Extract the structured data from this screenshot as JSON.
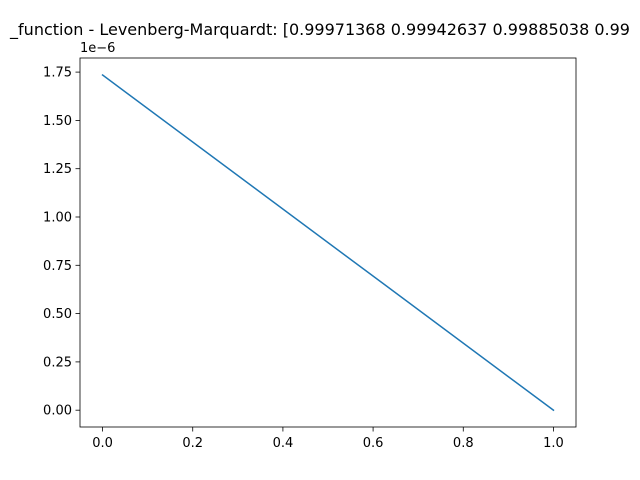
{
  "chart_data": {
    "type": "line",
    "title": "_function - Levenberg-Marquardt: [0.99971368 0.99942637 0.99885038 0.99",
    "xlabel": "",
    "ylabel": "",
    "y_offset_label": "1e−6",
    "xlim": [
      -0.05,
      1.05
    ],
    "ylim": [
      -0.087,
      1.823
    ],
    "grid": false,
    "x_ticks": [
      0.0,
      0.2,
      0.4,
      0.6,
      0.8,
      1.0
    ],
    "x_tick_labels": [
      "0.0",
      "0.2",
      "0.4",
      "0.6",
      "0.8",
      "1.0"
    ],
    "y_ticks": [
      0.0,
      0.25,
      0.5,
      0.75,
      1.0,
      1.25,
      1.5,
      1.75
    ],
    "y_tick_labels": [
      "0.00",
      "0.25",
      "0.50",
      "0.75",
      "1.00",
      "1.25",
      "1.50",
      "1.75"
    ],
    "series": [
      {
        "color": "#1f77b4",
        "x": [
          0.0,
          1.0
        ],
        "y": [
          1.735,
          0.0
        ]
      }
    ]
  }
}
